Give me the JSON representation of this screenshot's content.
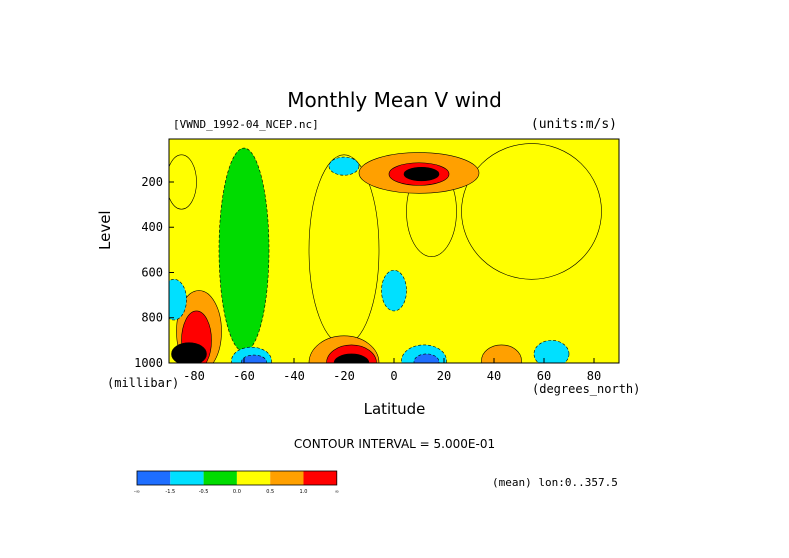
{
  "chart_data": {
    "type": "heatmap",
    "title": "Monthly Mean V wind",
    "subtitle_left": "[VWND_1992-04_NCEP.nc]",
    "subtitle_right": "(units:m/s)",
    "xlabel": "Latitude",
    "xunit": "(degrees_north)",
    "ylabel": "Level",
    "yunit": "(millibar)",
    "x_ticks": [
      "-80",
      "-60",
      "-40",
      "-20",
      "0",
      "20",
      "40",
      "60",
      "80"
    ],
    "x_tick_values": [
      -80,
      -60,
      -40,
      -20,
      0,
      20,
      40,
      60,
      80
    ],
    "y_ticks": [
      "200",
      "400",
      "600",
      "800",
      "1000"
    ],
    "y_tick_values": [
      200,
      400,
      600,
      800,
      1000
    ],
    "xlim": [
      -90,
      90
    ],
    "ylim": [
      1000,
      10
    ],
    "contour_interval_text": "CONTOUR INTERVAL = 5.000E-01",
    "footer_right": "(mean) lon:0..357.5",
    "colorbar": {
      "colors": [
        "#1e6eff",
        "#00e0ff",
        "#00dc00",
        "#ffff00",
        "#ffa000",
        "#ff0000"
      ],
      "labels": [
        "-∞",
        "-1.5",
        "-0.5",
        "0.0",
        "0.5",
        "1.0",
        "∞"
      ]
    },
    "regions": [
      {
        "level": 2,
        "lat": -60,
        "p": 500,
        "rx": 10,
        "rp": 450
      },
      {
        "level": 3,
        "lat": -20,
        "p": 500,
        "rx": 14,
        "rp": 420
      },
      {
        "level": 3,
        "lat": 55,
        "p": 330,
        "rx": 28,
        "rp": 300
      },
      {
        "level": 3,
        "lat": 15,
        "p": 330,
        "rx": 10,
        "rp": 200
      },
      {
        "level": 3,
        "lat": -85,
        "p": 200,
        "rx": 6,
        "rp": 120
      },
      {
        "level": 1,
        "lat": -20,
        "p": 130,
        "rx": 6,
        "rp": 40
      },
      {
        "level": 1,
        "lat": 0,
        "p": 680,
        "rx": 5,
        "rp": 90
      },
      {
        "level": 4,
        "lat": 10,
        "p": 160,
        "rx": 24,
        "rp": 90
      },
      {
        "level": 5,
        "lat": 10,
        "p": 165,
        "rx": 12,
        "rp": 50
      },
      {
        "level": 6,
        "lat": 11,
        "p": 165,
        "rx": 7,
        "rp": 30
      },
      {
        "level": 4,
        "lat": -78,
        "p": 860,
        "rx": 9,
        "rp": 180
      },
      {
        "level": 5,
        "lat": -79,
        "p": 900,
        "rx": 6,
        "rp": 130
      },
      {
        "level": 6,
        "lat": -82,
        "p": 960,
        "rx": 7,
        "rp": 50
      },
      {
        "level": 4,
        "lat": -20,
        "p": 1000,
        "rx": 14,
        "rp": 120
      },
      {
        "level": 5,
        "lat": -17,
        "p": 1000,
        "rx": 10,
        "rp": 80
      },
      {
        "level": 6,
        "lat": -17,
        "p": 1000,
        "rx": 7,
        "rp": 40
      },
      {
        "level": 4,
        "lat": 43,
        "p": 990,
        "rx": 8,
        "rp": 70
      },
      {
        "level": 1,
        "lat": -57,
        "p": 990,
        "rx": 8,
        "rp": 60
      },
      {
        "level": 0,
        "lat": -56,
        "p": 995,
        "rx": 5,
        "rp": 30
      },
      {
        "level": 1,
        "lat": 12,
        "p": 990,
        "rx": 9,
        "rp": 70
      },
      {
        "level": 0,
        "lat": 13,
        "p": 995,
        "rx": 5,
        "rp": 35
      },
      {
        "level": 1,
        "lat": -88,
        "p": 720,
        "rx": 5,
        "rp": 90
      },
      {
        "level": 1,
        "lat": 63,
        "p": 960,
        "rx": 7,
        "rp": 60
      }
    ]
  }
}
